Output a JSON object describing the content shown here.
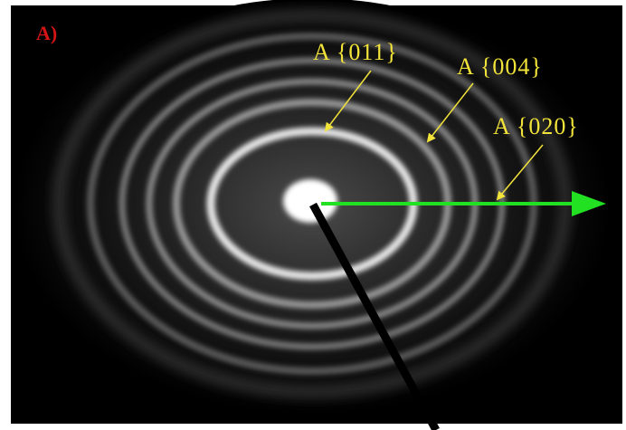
{
  "panel_label": "A)",
  "annotations": [
    {
      "label": "A {011}"
    },
    {
      "label": "A {004}"
    },
    {
      "label": "A {020}"
    }
  ]
}
